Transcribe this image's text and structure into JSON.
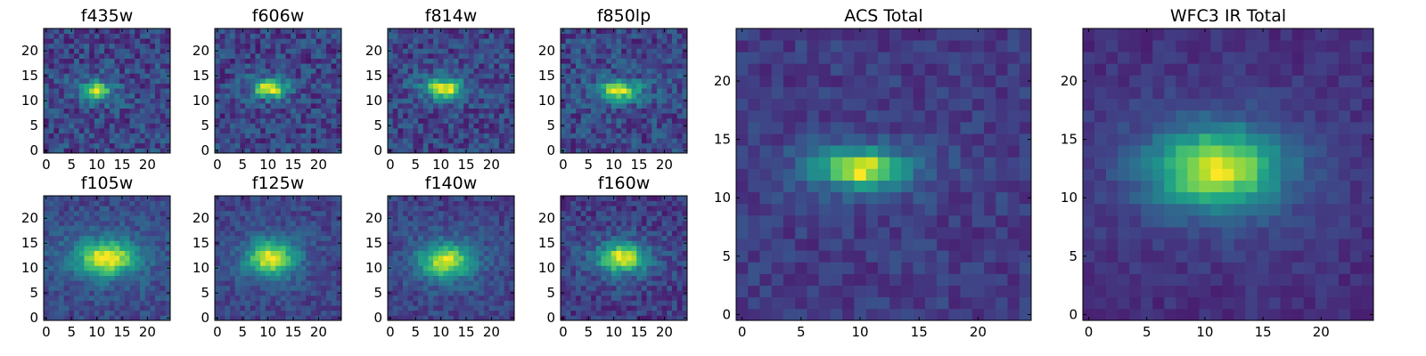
{
  "chart_data": [
    {
      "type": "heatmap",
      "title": "f435w",
      "grid": "25x25",
      "xticks": [
        "0",
        "5",
        "10",
        "15",
        "20"
      ],
      "yticks": [
        "0",
        "5",
        "10",
        "15",
        "20"
      ],
      "xlim": [
        -0.5,
        24.5
      ],
      "ylim": [
        -0.5,
        24.5
      ],
      "colormap": "viridis",
      "grid_lines": false,
      "source": {
        "peak_x": 10,
        "peak_y": 12,
        "sigma_x": 2.0,
        "sigma_y": 1.2,
        "noise": 0.42,
        "background": 0.3
      }
    },
    {
      "type": "heatmap",
      "title": "f606w",
      "grid": "25x25",
      "xticks": [
        "0",
        "5",
        "10",
        "15",
        "20"
      ],
      "yticks": [
        "0",
        "5",
        "10",
        "15",
        "20"
      ],
      "xlim": [
        -0.5,
        24.5
      ],
      "ylim": [
        -0.5,
        24.5
      ],
      "colormap": "viridis",
      "grid_lines": false,
      "source": {
        "peak_x": 10.5,
        "peak_y": 12.5,
        "sigma_x": 2.0,
        "sigma_y": 1.1,
        "noise": 0.32,
        "background": 0.22
      }
    },
    {
      "type": "heatmap",
      "title": "f814w",
      "grid": "25x25",
      "xticks": [
        "0",
        "5",
        "10",
        "15",
        "20"
      ],
      "yticks": [
        "0",
        "5",
        "10",
        "15",
        "20"
      ],
      "xlim": [
        -0.5,
        24.5
      ],
      "ylim": [
        -0.5,
        24.5
      ],
      "colormap": "viridis",
      "grid_lines": false,
      "source": {
        "peak_x": 10.5,
        "peak_y": 12.5,
        "sigma_x": 2.2,
        "sigma_y": 1.2,
        "noise": 0.3,
        "background": 0.22
      }
    },
    {
      "type": "heatmap",
      "title": "f850lp",
      "grid": "25x25",
      "xticks": [
        "0",
        "5",
        "10",
        "15",
        "20"
      ],
      "yticks": [
        "0",
        "5",
        "10",
        "15",
        "20"
      ],
      "xlim": [
        -0.5,
        24.5
      ],
      "ylim": [
        -0.5,
        24.5
      ],
      "colormap": "viridis",
      "grid_lines": false,
      "source": {
        "peak_x": 11,
        "peak_y": 12,
        "sigma_x": 2.5,
        "sigma_y": 1.3,
        "noise": 0.38,
        "background": 0.28
      }
    },
    {
      "type": "heatmap",
      "title": "f105w",
      "grid": "25x25",
      "xticks": [
        "0",
        "5",
        "10",
        "15",
        "20"
      ],
      "yticks": [
        "0",
        "5",
        "10",
        "15",
        "20"
      ],
      "xlim": [
        -0.5,
        24.5
      ],
      "ylim": [
        -0.5,
        24.5
      ],
      "colormap": "viridis",
      "grid_lines": false,
      "source": {
        "peak_x": 12,
        "peak_y": 12,
        "sigma_x": 3.6,
        "sigma_y": 2.2,
        "noise": 0.22,
        "background": 0.25
      }
    },
    {
      "type": "heatmap",
      "title": "f125w",
      "grid": "25x25",
      "xticks": [
        "0",
        "5",
        "10",
        "15",
        "20"
      ],
      "yticks": [
        "0",
        "5",
        "10",
        "15",
        "20"
      ],
      "xlim": [
        -0.5,
        24.5
      ],
      "ylim": [
        -0.5,
        24.5
      ],
      "colormap": "viridis",
      "grid_lines": false,
      "source": {
        "peak_x": 10.5,
        "peak_y": 12,
        "sigma_x": 3.0,
        "sigma_y": 2.3,
        "noise": 0.22,
        "background": 0.24
      }
    },
    {
      "type": "heatmap",
      "title": "f140w",
      "grid": "25x25",
      "xticks": [
        "0",
        "5",
        "10",
        "15",
        "20"
      ],
      "yticks": [
        "0",
        "5",
        "10",
        "15",
        "20"
      ],
      "xlim": [
        -0.5,
        24.5
      ],
      "ylim": [
        -0.5,
        24.5
      ],
      "colormap": "viridis",
      "grid_lines": false,
      "source": {
        "peak_x": 11,
        "peak_y": 11.5,
        "sigma_x": 3.4,
        "sigma_y": 2.2,
        "noise": 0.24,
        "background": 0.25
      }
    },
    {
      "type": "heatmap",
      "title": "f160w",
      "grid": "25x25",
      "xticks": [
        "0",
        "5",
        "10",
        "15",
        "20"
      ],
      "yticks": [
        "0",
        "5",
        "10",
        "15",
        "20"
      ],
      "xlim": [
        -0.5,
        24.5
      ],
      "ylim": [
        -0.5,
        24.5
      ],
      "colormap": "viridis",
      "grid_lines": false,
      "source": {
        "peak_x": 11.5,
        "peak_y": 12,
        "sigma_x": 3.0,
        "sigma_y": 1.8,
        "noise": 0.26,
        "background": 0.2
      }
    },
    {
      "type": "heatmap",
      "title": "ACS Total",
      "grid": "25x25",
      "xticks": [
        "0",
        "5",
        "10",
        "15",
        "20"
      ],
      "yticks": [
        "0",
        "5",
        "10",
        "15",
        "20"
      ],
      "xlim": [
        -0.5,
        24.5
      ],
      "ylim": [
        -0.5,
        24.5
      ],
      "colormap": "viridis",
      "grid_lines": false,
      "source": {
        "peak_x": 10,
        "peak_y": 12.5,
        "sigma_x": 2.3,
        "sigma_y": 1.0,
        "noise": 0.18,
        "background": 0.2
      }
    },
    {
      "type": "heatmap",
      "title": "WFC3 IR Total",
      "grid": "25x25",
      "xticks": [
        "0",
        "5",
        "10",
        "15",
        "20"
      ],
      "yticks": [
        "0",
        "5",
        "10",
        "15",
        "20"
      ],
      "xlim": [
        -0.5,
        24.5
      ],
      "ylim": [
        -0.5,
        24.5
      ],
      "colormap": "viridis",
      "grid_lines": false,
      "source": {
        "peak_x": 11,
        "peak_y": 12.5,
        "sigma_x": 3.6,
        "sigma_y": 2.2,
        "noise": 0.12,
        "background": 0.15
      }
    }
  ]
}
